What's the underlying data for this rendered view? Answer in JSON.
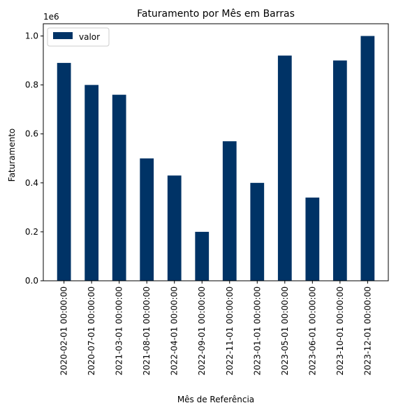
{
  "chart_data": {
    "type": "bar",
    "title": "Faturamento por Mês em Barras",
    "xlabel": "Mês de Referência",
    "ylabel": "Faturamento",
    "y_offset_label": "1e6",
    "categories": [
      "2020-02-01 00:00:00",
      "2020-07-01 00:00:00",
      "2021-03-01 00:00:00",
      "2021-08-01 00:00:00",
      "2022-04-01 00:00:00",
      "2022-09-01 00:00:00",
      "2022-11-01 00:00:00",
      "2023-01-01 00:00:00",
      "2023-05-01 00:00:00",
      "2023-06-01 00:00:00",
      "2023-10-01 00:00:00",
      "2023-12-01 00:00:00"
    ],
    "series": [
      {
        "name": "valor",
        "color": "#003366",
        "values": [
          890000,
          800000,
          760000,
          500000,
          430000,
          200000,
          570000,
          400000,
          920000,
          340000,
          900000,
          1000000
        ]
      }
    ],
    "ylim": [
      0,
      1050000
    ],
    "yticks": [
      0,
      200000,
      400000,
      600000,
      800000,
      1000000
    ],
    "ytick_labels": [
      "0.0",
      "0.2",
      "0.4",
      "0.6",
      "0.8",
      "1.0"
    ],
    "grid": false,
    "legend_position": "top-left"
  }
}
